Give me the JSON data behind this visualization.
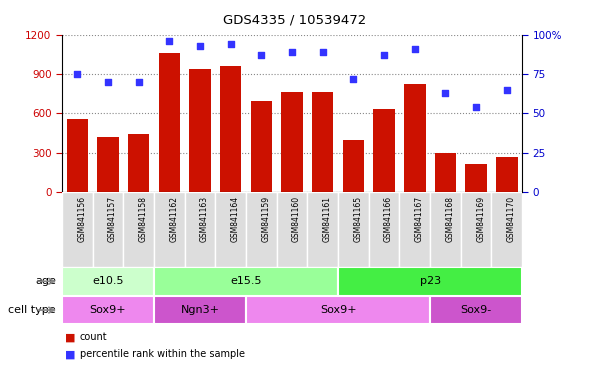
{
  "title": "GDS4335 / 10539472",
  "samples": [
    "GSM841156",
    "GSM841157",
    "GSM841158",
    "GSM841162",
    "GSM841163",
    "GSM841164",
    "GSM841159",
    "GSM841160",
    "GSM841161",
    "GSM841165",
    "GSM841166",
    "GSM841167",
    "GSM841168",
    "GSM841169",
    "GSM841170"
  ],
  "counts": [
    555,
    420,
    440,
    1060,
    940,
    960,
    690,
    760,
    760,
    400,
    635,
    820,
    300,
    210,
    270
  ],
  "percentiles": [
    75,
    70,
    70,
    96,
    93,
    94,
    87,
    89,
    89,
    72,
    87,
    91,
    63,
    54,
    65
  ],
  "ylim_left": [
    0,
    1200
  ],
  "ylim_right": [
    0,
    100
  ],
  "yticks_left": [
    0,
    300,
    600,
    900,
    1200
  ],
  "yticks_right": [
    0,
    25,
    50,
    75,
    100
  ],
  "bar_color": "#cc1100",
  "dot_color": "#3333ff",
  "grid_color": "#888888",
  "age_groups": [
    {
      "label": "e10.5",
      "start": 0,
      "end": 3,
      "color": "#ccffcc"
    },
    {
      "label": "e15.5",
      "start": 3,
      "end": 9,
      "color": "#99ff99"
    },
    {
      "label": "p23",
      "start": 9,
      "end": 15,
      "color": "#44ee44"
    }
  ],
  "cell_groups": [
    {
      "label": "Sox9+",
      "start": 0,
      "end": 3,
      "color": "#ee88ee"
    },
    {
      "label": "Ngn3+",
      "start": 3,
      "end": 6,
      "color": "#cc55cc"
    },
    {
      "label": "Sox9+",
      "start": 6,
      "end": 12,
      "color": "#ee88ee"
    },
    {
      "label": "Sox9-",
      "start": 12,
      "end": 15,
      "color": "#cc55cc"
    }
  ],
  "tick_label_color_left": "#cc0000",
  "tick_label_color_right": "#0000cc",
  "row_label_age": "age",
  "row_label_cell": "cell type",
  "legend_count_color": "#cc1100",
  "legend_dot_color": "#3333ff"
}
